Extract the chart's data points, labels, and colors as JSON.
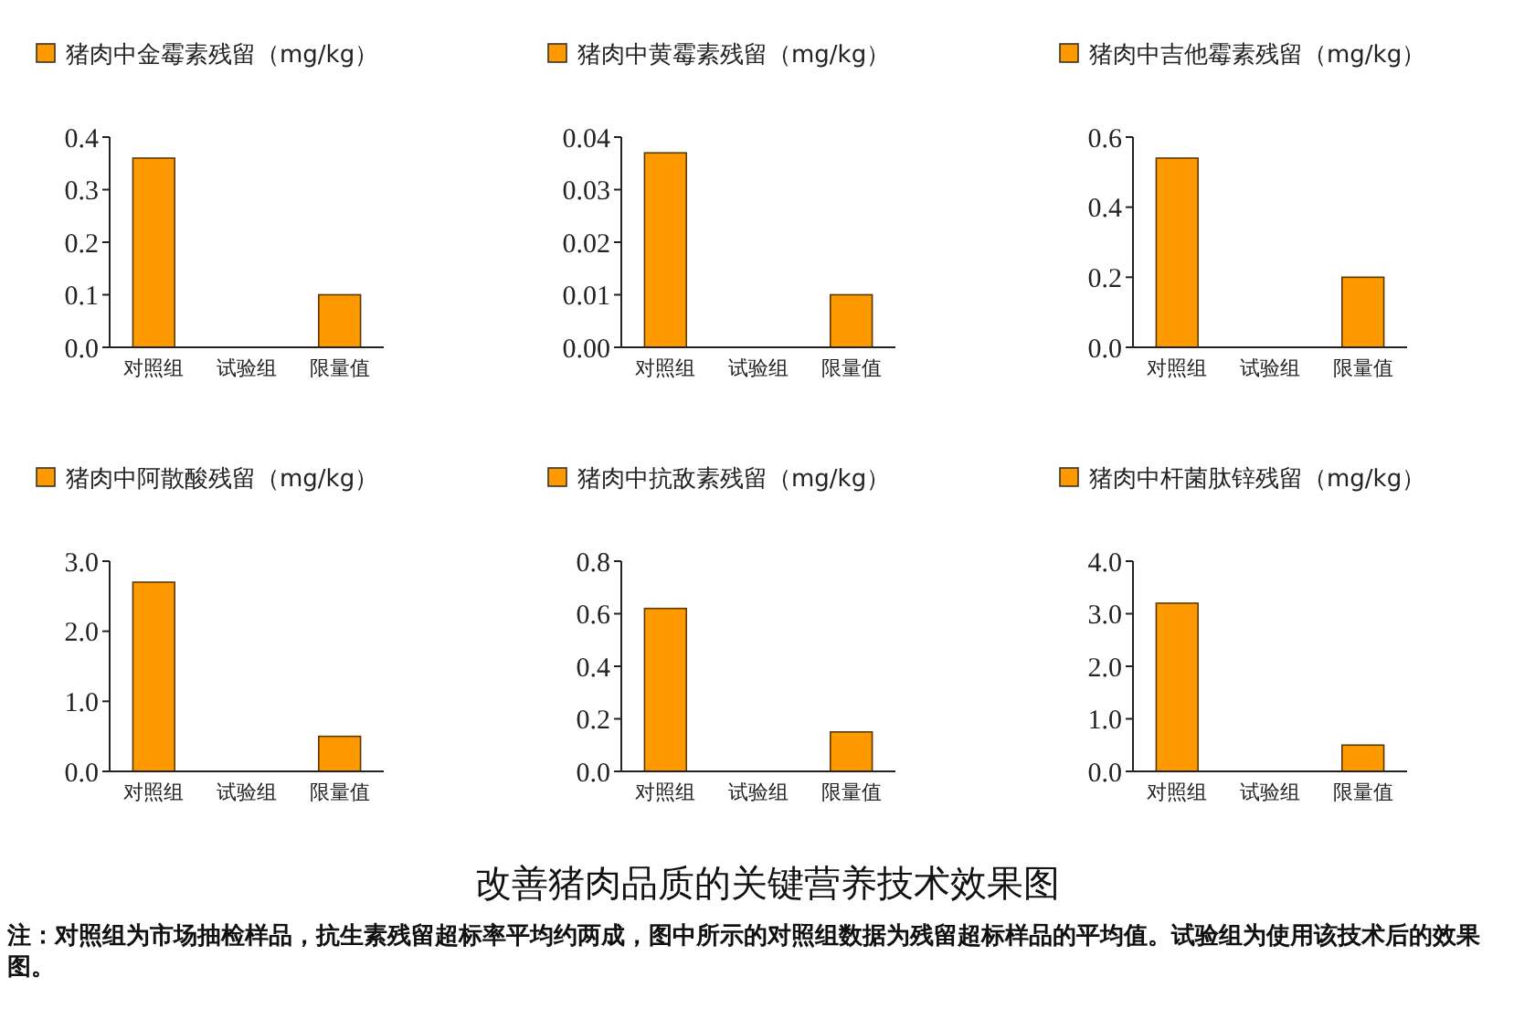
{
  "chart_data": [
    {
      "type": "bar",
      "categories": [
        "对照组",
        "试验组",
        "限量值"
      ],
      "series": [
        {
          "name": "猪肉中金霉素残留（mg/kg）",
          "color": "#ff9900",
          "values": [
            0.36,
            0,
            0.1
          ]
        }
      ],
      "ylim": [
        0,
        0.4
      ],
      "yticks": [
        {
          "value": 0,
          "label": "0.0"
        },
        0.1,
        0.2,
        0.3,
        0.4
      ],
      "legend": "top left",
      "grid": false
    },
    {
      "type": "bar",
      "categories": [
        "对照组",
        "试验组",
        "限量值"
      ],
      "series": [
        {
          "name": "猪肉中黄霉素残留（mg/kg）",
          "color": "#ff9900",
          "values": [
            0.037,
            0,
            0.01
          ]
        }
      ],
      "ylim": [
        0,
        0.04
      ],
      "yticks": [
        {
          "value": 0,
          "label": "0.00"
        },
        0.01,
        0.02,
        0.03,
        0.04
      ],
      "legend": "top left",
      "grid": false
    },
    {
      "type": "bar",
      "categories": [
        "对照组",
        "试验组",
        "限量值"
      ],
      "series": [
        {
          "name": "猪肉中吉他霉素残留（mg/kg）",
          "color": "#ff9900",
          "values": [
            0.54,
            0,
            0.2
          ]
        }
      ],
      "ylim": [
        0,
        0.6
      ],
      "yticks": [
        {
          "value": 0,
          "label": "0.0"
        },
        0.2,
        0.4,
        0.6
      ],
      "legend": "top left",
      "grid": false
    },
    {
      "type": "bar",
      "categories": [
        "对照组",
        "试验组",
        "限量值"
      ],
      "series": [
        {
          "name": "猪肉中阿散酸残留（mg/kg）",
          "color": "#ff9900",
          "values": [
            2.7,
            0,
            0.5
          ]
        }
      ],
      "ylim": [
        0,
        3
      ],
      "yticks": [
        {
          "value": 0,
          "label": "0.0"
        },
        {
          "value": 1,
          "label": "1.0"
        },
        {
          "value": 2,
          "label": "2.0"
        },
        {
          "value": 3,
          "label": "3.0"
        }
      ],
      "legend": "top left",
      "grid": false
    },
    {
      "type": "bar",
      "categories": [
        "对照组",
        "试验组",
        "限量值"
      ],
      "series": [
        {
          "name": "猪肉中抗敌素残留（mg/kg）",
          "color": "#ff9900",
          "values": [
            0.62,
            0,
            0.15
          ]
        }
      ],
      "ylim": [
        0,
        0.8
      ],
      "yticks": [
        {
          "value": 0,
          "label": "0.0"
        },
        0.2,
        0.4,
        0.6,
        0.8
      ],
      "legend": "top left",
      "grid": false
    },
    {
      "type": "bar",
      "categories": [
        "对照组",
        "试验组",
        "限量值"
      ],
      "series": [
        {
          "name": "猪肉中杆菌肽锌残留（mg/kg）",
          "color": "#ff9900",
          "values": [
            3.2,
            0,
            0.5
          ]
        }
      ],
      "ylim": [
        0,
        4
      ],
      "yticks": [
        {
          "value": 0,
          "label": "0.0"
        },
        {
          "value": 1,
          "label": "1.0"
        },
        {
          "value": 2,
          "label": "2.0"
        },
        {
          "value": 3,
          "label": "3.0"
        },
        {
          "value": 4,
          "label": "4.0"
        }
      ],
      "legend": "top left",
      "grid": false
    },
    {
      "type": "other",
      "title": "改善猪肉品质的关键营养技术效果图",
      "annotations": [
        "注：对照组为市场抽检样品，抗生素残留超标率平均约两成，图中所示的对照组数据为残留超标样品的平均值。试验组为使用该技术后的效果图。"
      ]
    }
  ]
}
